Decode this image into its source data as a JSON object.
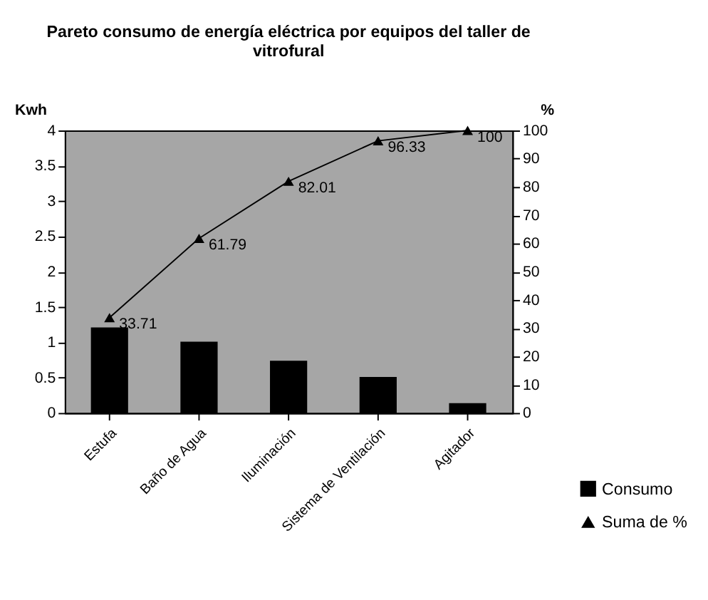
{
  "chart_data": {
    "type": "bar",
    "title": [
      "Pareto consumo de energía eléctrica por equipos del taller de",
      "vitrofural"
    ],
    "ylabel": "Kwh",
    "y2label": "%",
    "categories": [
      "Estufa",
      "Baño de Agua",
      "Iluminación",
      "Sistema de Ventilación",
      "Agitador"
    ],
    "series": [
      {
        "name": "Consumo",
        "color": "#000000",
        "values": [
          1.2,
          1.0,
          0.73,
          0.5,
          0.13
        ]
      },
      {
        "name": "Suma de %",
        "type": "line",
        "axis": "y2",
        "color": "#000000",
        "marker": "triangle",
        "values": [
          33.71,
          61.79,
          82.01,
          96.33,
          100
        ],
        "value_labels": [
          "33.71",
          "61.79",
          "82.01",
          "96.33",
          "100"
        ]
      }
    ],
    "ylim": [
      0,
      4
    ],
    "yticks": [
      0,
      0.5,
      1,
      1.5,
      2,
      2.5,
      3,
      3.5,
      4
    ],
    "y2lim": [
      0,
      100
    ],
    "y2ticks": [
      0,
      10,
      20,
      30,
      40,
      50,
      60,
      70,
      80,
      90,
      100
    ],
    "grid": false,
    "legend": "bottom right"
  }
}
